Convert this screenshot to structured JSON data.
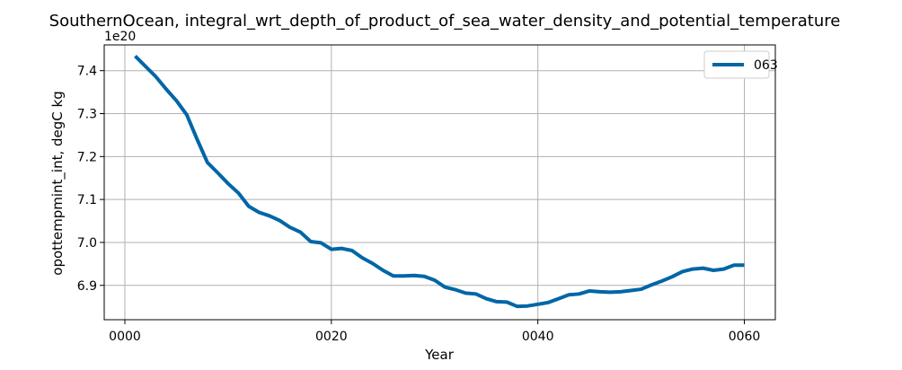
{
  "chart_data": {
    "type": "line",
    "title": "SouthernOcean, integral_wrt_depth_of_product_of_sea_water_density_and_potential_temperature",
    "xlabel": "Year",
    "ylabel": "opottempmint_int, degC kg",
    "offset_text": "1e20",
    "xlim": [
      -2,
      63
    ],
    "ylim": [
      6.82,
      7.46
    ],
    "x_ticks": [
      0,
      20,
      40,
      60
    ],
    "x_tick_labels": [
      "0000",
      "0020",
      "0040",
      "0060"
    ],
    "y_ticks": [
      6.9,
      7.0,
      7.1,
      7.2,
      7.3,
      7.4
    ],
    "y_tick_labels": [
      "6.9",
      "7.0",
      "7.1",
      "7.2",
      "7.3",
      "7.4"
    ],
    "grid": true,
    "legend_position": "upper right",
    "series": [
      {
        "name": "063",
        "color": "#0066a6",
        "x": [
          1,
          2,
          3,
          4,
          5,
          6,
          7,
          8,
          9,
          10,
          11,
          12,
          13,
          14,
          15,
          16,
          17,
          18,
          19,
          20,
          21,
          22,
          23,
          24,
          25,
          26,
          27,
          28,
          29,
          30,
          31,
          32,
          33,
          34,
          35,
          36,
          37,
          38,
          39,
          40,
          41,
          42,
          43,
          44,
          45,
          46,
          47,
          48,
          49,
          50,
          51,
          52,
          53,
          54,
          55,
          56,
          57,
          58,
          59,
          60
        ],
        "values": [
          7.434,
          7.41,
          7.386,
          7.357,
          7.33,
          7.297,
          7.24,
          7.186,
          7.162,
          7.137,
          7.115,
          7.084,
          7.07,
          7.062,
          7.051,
          7.035,
          7.024,
          7.002,
          6.999,
          6.984,
          6.986,
          6.981,
          6.964,
          6.951,
          6.935,
          6.922,
          6.922,
          6.923,
          6.921,
          6.912,
          6.896,
          6.89,
          6.882,
          6.88,
          6.869,
          6.862,
          6.861,
          6.851,
          6.852,
          6.856,
          6.86,
          6.869,
          6.878,
          6.88,
          6.887,
          6.885,
          6.884,
          6.885,
          6.888,
          6.891,
          6.901,
          6.91,
          6.92,
          6.932,
          6.938,
          6.94,
          6.935,
          6.938,
          6.947,
          6.947
        ]
      }
    ]
  }
}
